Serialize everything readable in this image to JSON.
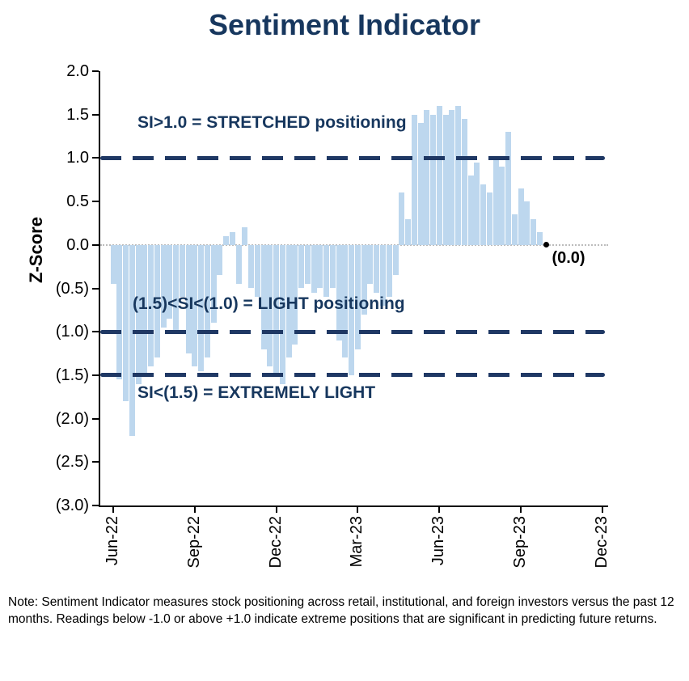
{
  "note": "Note: Sentiment Indicator measures stock positioning across retail, institutional, and foreign investors versus the past 12 months. Readings below -1.0 or above +1.0 indicate extreme positions that are significant in predicting future returns.",
  "chart_data": {
    "type": "bar",
    "title": "Sentiment Indicator",
    "ylabel": "Z-Score",
    "xlabel": "",
    "ylim": [
      -3.0,
      2.0
    ],
    "grid": false,
    "legend": false,
    "frequency": "weekly",
    "x_start_label": "Jun-22",
    "x_end_label": "Dec-23",
    "yticks": [
      {
        "value": 2.0,
        "label": "2.0"
      },
      {
        "value": 1.5,
        "label": "1.5"
      },
      {
        "value": 1.0,
        "label": "1.0"
      },
      {
        "value": 0.5,
        "label": "0.5"
      },
      {
        "value": 0.0,
        "label": "0.0"
      },
      {
        "value": -0.5,
        "label": "(0.5)"
      },
      {
        "value": -1.0,
        "label": "(1.0)"
      },
      {
        "value": -1.5,
        "label": "(1.5)"
      },
      {
        "value": -2.0,
        "label": "(2.0)"
      },
      {
        "value": -2.5,
        "label": "(2.5)"
      },
      {
        "value": -3.0,
        "label": "(3.0)"
      }
    ],
    "xtick_labels": [
      "Jun-22",
      "Sep-22",
      "Dec-22",
      "Mar-23",
      "Jun-23",
      "Sep-23",
      "Dec-23"
    ],
    "values": [
      -0.45,
      -1.55,
      -1.8,
      -2.2,
      -1.6,
      -1.5,
      -1.4,
      -1.3,
      -0.95,
      -0.85,
      -1.0,
      -0.6,
      -1.25,
      -1.4,
      -1.45,
      -1.3,
      -0.9,
      -0.35,
      0.1,
      0.15,
      -0.45,
      0.2,
      -0.5,
      -0.6,
      -1.2,
      -1.4,
      -1.5,
      -1.6,
      -1.3,
      -1.15,
      -0.5,
      -0.45,
      -0.55,
      -0.5,
      -0.6,
      -0.5,
      -1.1,
      -1.3,
      -1.5,
      -1.2,
      -0.8,
      -0.45,
      -0.55,
      -0.7,
      -0.6,
      -0.35,
      0.6,
      0.3,
      1.5,
      1.4,
      1.55,
      1.5,
      1.6,
      1.5,
      1.55,
      1.6,
      1.45,
      0.8,
      0.95,
      0.7,
      0.6,
      1.0,
      0.9,
      1.3,
      0.35,
      0.65,
      0.5,
      0.3,
      0.15,
      0.0
    ],
    "reference_lines": [
      {
        "value": 1.0,
        "label": "SI>1.0 = STRETCHED positioning"
      },
      {
        "value": -1.0,
        "label": "(1.5)<SI<(1.0) = LIGHT positioning"
      },
      {
        "value": -1.5,
        "label": "SI<(1.5) = EXTREMELY LIGHT"
      }
    ],
    "zero_line": true,
    "last_point": {
      "value": 0.0,
      "label": "(0.0)"
    },
    "colors": {
      "bar": "#bdd7ee",
      "reference_line": "#1f3864",
      "title": "#17375e",
      "annotation": "#17375e",
      "axis": "#000000",
      "zero_line": "#bcbcbc",
      "last_point": "#000000"
    }
  }
}
